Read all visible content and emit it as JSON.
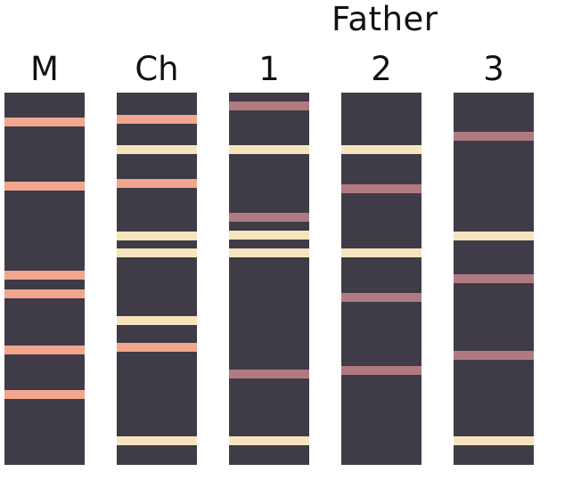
{
  "header": {
    "father_label": "Father"
  },
  "colors": {
    "lane_bg": "#3f3b47",
    "salmon": "#f2a58f",
    "cream": "#f7e4bd",
    "mauve": "#b07b80"
  },
  "lanes": [
    {
      "label": "M",
      "bands": [
        {
          "pos": 0.078,
          "color": "salmon"
        },
        {
          "pos": 0.252,
          "color": "salmon"
        },
        {
          "pos": 0.491,
          "color": "salmon"
        },
        {
          "pos": 0.541,
          "color": "salmon"
        },
        {
          "pos": 0.691,
          "color": "salmon"
        },
        {
          "pos": 0.812,
          "color": "salmon"
        }
      ]
    },
    {
      "label": "Ch",
      "bands": [
        {
          "pos": 0.071,
          "color": "salmon"
        },
        {
          "pos": 0.154,
          "color": "cream"
        },
        {
          "pos": 0.245,
          "color": "salmon"
        },
        {
          "pos": 0.385,
          "color": "cream"
        },
        {
          "pos": 0.43,
          "color": "cream"
        },
        {
          "pos": 0.613,
          "color": "cream"
        },
        {
          "pos": 0.684,
          "color": "salmon"
        },
        {
          "pos": 0.935,
          "color": "cream"
        }
      ]
    },
    {
      "label": "1",
      "bands": [
        {
          "pos": 0.036,
          "color": "mauve"
        },
        {
          "pos": 0.154,
          "color": "cream"
        },
        {
          "pos": 0.335,
          "color": "mauve"
        },
        {
          "pos": 0.383,
          "color": "cream"
        },
        {
          "pos": 0.43,
          "color": "cream"
        },
        {
          "pos": 0.756,
          "color": "mauve"
        },
        {
          "pos": 0.935,
          "color": "cream"
        }
      ]
    },
    {
      "label": "2",
      "bands": [
        {
          "pos": 0.154,
          "color": "cream"
        },
        {
          "pos": 0.258,
          "color": "mauve"
        },
        {
          "pos": 0.43,
          "color": "cream"
        },
        {
          "pos": 0.55,
          "color": "mauve"
        },
        {
          "pos": 0.746,
          "color": "mauve"
        }
      ]
    },
    {
      "label": "3",
      "bands": [
        {
          "pos": 0.117,
          "color": "mauve"
        },
        {
          "pos": 0.385,
          "color": "cream"
        },
        {
          "pos": 0.5,
          "color": "mauve"
        },
        {
          "pos": 0.706,
          "color": "mauve"
        },
        {
          "pos": 0.935,
          "color": "cream"
        }
      ]
    }
  ]
}
